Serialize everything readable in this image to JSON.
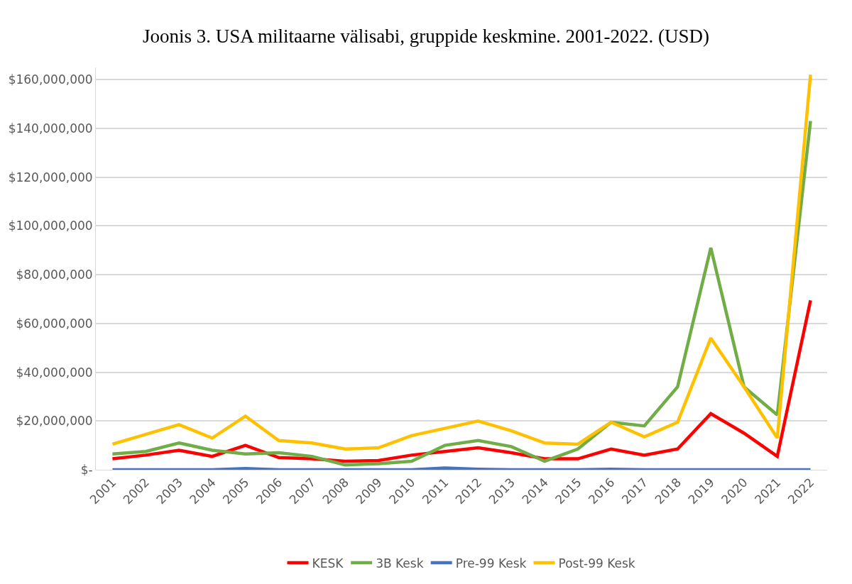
{
  "chart_data": {
    "type": "line",
    "title": "Joonis 3. USA militaarne välisabi, gruppide keskmine. 2001-2022. (USD)",
    "categories": [
      "2001",
      "2002",
      "2003",
      "2004",
      "2005",
      "2006",
      "2007",
      "2008",
      "2009",
      "2010",
      "2011",
      "2012",
      "2013",
      "2014",
      "2015",
      "2016",
      "2017",
      "2018",
      "2019",
      "2020",
      "2021",
      "2022"
    ],
    "series": [
      {
        "name": "KESK",
        "color": "#ff0000",
        "values": [
          4500000,
          6000000,
          8000000,
          5500000,
          10000000,
          5000000,
          4500000,
          3500000,
          3800000,
          6000000,
          7500000,
          9000000,
          7000000,
          4500000,
          4500000,
          8500000,
          6000000,
          8500000,
          23000000,
          15000000,
          5500000,
          69500000
        ]
      },
      {
        "name": "3B Kesk",
        "color": "#70ad47",
        "values": [
          6500000,
          7500000,
          11000000,
          8000000,
          6500000,
          7000000,
          5500000,
          2000000,
          2500000,
          3500000,
          10000000,
          12000000,
          9500000,
          3500000,
          8500000,
          19500000,
          18000000,
          34000000,
          91000000,
          34000000,
          22500000,
          143000000
        ]
      },
      {
        "name": "Pre-99 Kesk",
        "color": "#4472c4",
        "values": [
          0,
          0,
          0,
          0,
          500000,
          0,
          0,
          0,
          0,
          0,
          700000,
          200000,
          0,
          0,
          0,
          200000,
          0,
          0,
          0,
          0,
          0,
          0
        ]
      },
      {
        "name": "Post-99 Kesk",
        "color": "#ffc000",
        "values": [
          10500000,
          14500000,
          18500000,
          13000000,
          22000000,
          12000000,
          11000000,
          8500000,
          9000000,
          14000000,
          17000000,
          20000000,
          16000000,
          11000000,
          10500000,
          19500000,
          13500000,
          19500000,
          54000000,
          34000000,
          13000000,
          162000000
        ]
      }
    ],
    "ylim": [
      0,
      165000000
    ],
    "yticks": [
      {
        "value": 0,
        "label": "$-"
      },
      {
        "value": 20000000,
        "label": "$20,000,000"
      },
      {
        "value": 40000000,
        "label": "$40,000,000"
      },
      {
        "value": 60000000,
        "label": "$60,000,000"
      },
      {
        "value": 80000000,
        "label": "$80,000,000"
      },
      {
        "value": 100000000,
        "label": "$100,000,000"
      },
      {
        "value": 120000000,
        "label": "$120,000,000"
      },
      {
        "value": 140000000,
        "label": "$140,000,000"
      },
      {
        "value": 160000000,
        "label": "$160,000,000"
      }
    ],
    "grid": "y",
    "legend": "bottom",
    "marker": "none",
    "line_style": "solid"
  }
}
